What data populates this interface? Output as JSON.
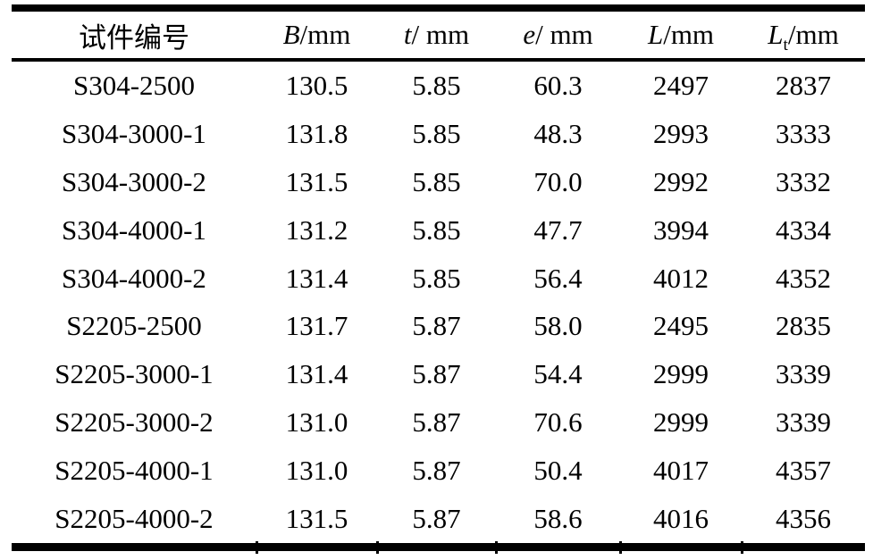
{
  "table": {
    "header": [
      {
        "text": "试件编号"
      },
      {
        "variable": "B",
        "subscript": "",
        "unit": "/mm"
      },
      {
        "variable": "t",
        "subscript": "",
        "unit": "/ mm"
      },
      {
        "variable": "e",
        "subscript": "",
        "unit": "/ mm"
      },
      {
        "variable": "L",
        "subscript": "",
        "unit": "/mm"
      },
      {
        "variable": "L",
        "subscript": "t",
        "unit": "/mm"
      }
    ],
    "rows": [
      [
        "S304-2500",
        "130.5",
        "5.85",
        "60.3",
        "2497",
        "2837"
      ],
      [
        "S304-3000-1",
        "131.8",
        "5.85",
        "48.3",
        "2993",
        "3333"
      ],
      [
        "S304-3000-2",
        "131.5",
        "5.85",
        "70.0",
        "2992",
        "3332"
      ],
      [
        "S304-4000-1",
        "131.2",
        "5.85",
        "47.7",
        "3994",
        "4334"
      ],
      [
        "S304-4000-2",
        "131.4",
        "5.85",
        "56.4",
        "4012",
        "4352"
      ],
      [
        "S2205-2500",
        "131.7",
        "5.87",
        "58.0",
        "2495",
        "2835"
      ],
      [
        "S2205-3000-1",
        "131.4",
        "5.87",
        "54.4",
        "2999",
        "3339"
      ],
      [
        "S2205-3000-2",
        "131.0",
        "5.87",
        "70.6",
        "2999",
        "3339"
      ],
      [
        "S2205-4000-1",
        "131.0",
        "5.87",
        "50.4",
        "4017",
        "4357"
      ],
      [
        "S2205-4000-2",
        "131.5",
        "5.87",
        "58.6",
        "4016",
        "4356"
      ]
    ],
    "rule_color": "#000000"
  }
}
